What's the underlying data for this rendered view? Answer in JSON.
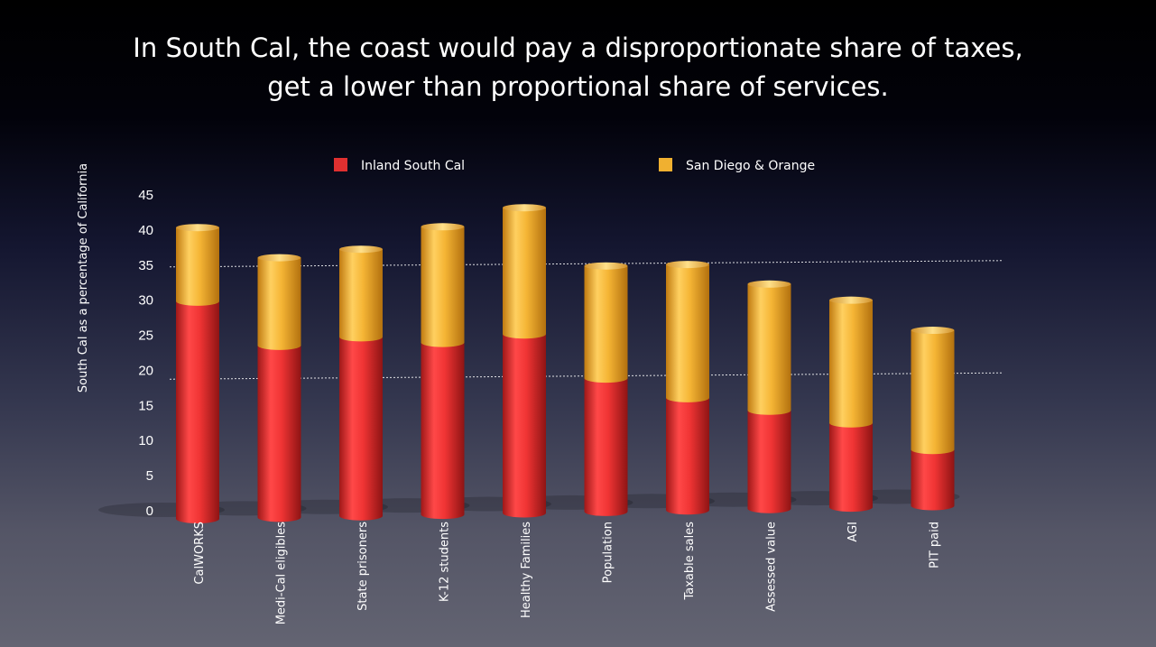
{
  "title_lines": [
    "In South Cal, the coast would pay a disproportionate share of taxes,",
    "get a lower than proportional share of services."
  ],
  "chart_data": {
    "type": "bar",
    "stacked": true,
    "categories": [
      "CalWORKS",
      "Medi-Cal eligibles",
      "State prisoners",
      "K-12 students",
      "Healthy Families",
      "Population",
      "Taxable sales",
      "Assessed value",
      "AGI",
      "PIT paid"
    ],
    "series": [
      {
        "name": "Inland South Cal",
        "color": "#e03030",
        "values": [
          31,
          24.5,
          25.5,
          24.5,
          25.5,
          19,
          16,
          14,
          12,
          8
        ]
      },
      {
        "name": "San Diego & Orange",
        "color": "#f0b030",
        "values": [
          10.5,
          12.5,
          12.5,
          16.5,
          18,
          16,
          19,
          18,
          17.5,
          17
        ]
      }
    ],
    "ylabel": "South Cal as a percentage of California",
    "ylim": [
      0,
      45
    ],
    "yticks": [
      0,
      5,
      10,
      15,
      20,
      25,
      30,
      35,
      40,
      45
    ],
    "reference_lines": [
      35,
      19
    ],
    "legend_position": "top"
  }
}
